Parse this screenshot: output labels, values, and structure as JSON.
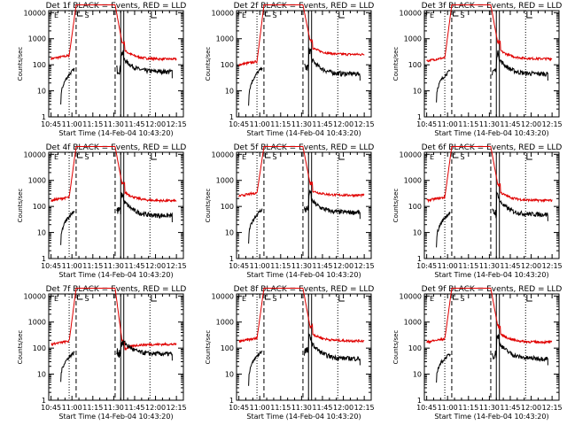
{
  "colors": {
    "events": "#000000",
    "lld": "#e00000",
    "background": "#ffffff"
  },
  "x_tick_labels": [
    "10:45",
    "11:00",
    "11:15",
    "11:30",
    "11:45",
    "12:00",
    "12:15"
  ],
  "y_tick_labels": [
    "1",
    "10",
    "100",
    "1000",
    "10000"
  ],
  "marker_labels": [
    "S",
    "E"
  ],
  "chart_data": [
    {
      "type": "line",
      "title": "Det 1f BLACK = Events, RED = LLD",
      "xlabel": "Start Time (14-Feb-04 10:43:20)",
      "ylabel": "Counts/sec",
      "yscale": "log",
      "ylim": [
        1,
        12000
      ],
      "xlim": [
        "10:43:20",
        "12:20:00"
      ],
      "lld_base": 170,
      "lld_after": 165,
      "events_pre": [
        3,
        70
      ],
      "events_post": 55,
      "post_spike": 700,
      "series": [
        {
          "name": "Events",
          "color": "#000000"
        },
        {
          "name": "LLD",
          "color": "#e00000"
        }
      ]
    },
    {
      "type": "line",
      "title": "Det 2f BLACK = Events, RED = LLD",
      "xlabel": "Start Time (14-Feb-04 10:43:20)",
      "ylabel": "Counts/sec",
      "yscale": "log",
      "ylim": [
        1,
        12000
      ],
      "xlim": [
        "10:43:20",
        "12:20:00"
      ],
      "lld_base": 100,
      "lld_after": 250,
      "events_pre": [
        3,
        80
      ],
      "events_post": 45,
      "post_spike": 900,
      "series": [
        {
          "name": "Events",
          "color": "#000000"
        },
        {
          "name": "LLD",
          "color": "#e00000"
        }
      ]
    },
    {
      "type": "line",
      "title": "Det 3f BLACK = Events, RED = LLD",
      "xlabel": "Start Time (14-Feb-04 10:43:20)",
      "ylabel": "Counts/sec",
      "yscale": "log",
      "ylim": [
        1,
        12000
      ],
      "xlim": [
        "10:43:20",
        "12:20:00"
      ],
      "lld_base": 140,
      "lld_after": 170,
      "events_pre": [
        4,
        60
      ],
      "events_post": 45,
      "post_spike": 700,
      "series": [
        {
          "name": "Events",
          "color": "#000000"
        },
        {
          "name": "LLD",
          "color": "#e00000"
        }
      ]
    },
    {
      "type": "line",
      "title": "Det 4f BLACK = Events, RED = LLD",
      "xlabel": "Start Time (14-Feb-04 10:43:20)",
      "ylabel": "Counts/sec",
      "yscale": "log",
      "ylim": [
        1,
        12000
      ],
      "xlim": [
        "10:43:20",
        "12:20:00"
      ],
      "lld_base": 170,
      "lld_after": 165,
      "events_pre": [
        3,
        70
      ],
      "events_post": 45,
      "post_spike": 700,
      "series": [
        {
          "name": "Events",
          "color": "#000000"
        },
        {
          "name": "LLD",
          "color": "#e00000"
        }
      ]
    },
    {
      "type": "line",
      "title": "Det 5f BLACK = Events, RED = LLD",
      "xlabel": "Start Time (14-Feb-04 10:43:20)",
      "ylabel": "Counts/sec",
      "yscale": "log",
      "ylim": [
        1,
        12000
      ],
      "xlim": [
        "10:43:20",
        "12:20:00"
      ],
      "lld_base": 250,
      "lld_after": 270,
      "events_pre": [
        4,
        80
      ],
      "events_post": 60,
      "post_spike": 800,
      "series": [
        {
          "name": "Events",
          "color": "#000000"
        },
        {
          "name": "LLD",
          "color": "#e00000"
        }
      ]
    },
    {
      "type": "line",
      "title": "Det 6f BLACK = Events, RED = LLD",
      "xlabel": "Start Time (14-Feb-04 10:43:20)",
      "ylabel": "Counts/sec",
      "yscale": "log",
      "ylim": [
        1,
        12000
      ],
      "xlim": [
        "10:43:20",
        "12:20:00"
      ],
      "lld_base": 170,
      "lld_after": 170,
      "events_pre": [
        3,
        60
      ],
      "events_post": 50,
      "post_spike": 700,
      "series": [
        {
          "name": "Events",
          "color": "#000000"
        },
        {
          "name": "LLD",
          "color": "#e00000"
        }
      ]
    },
    {
      "type": "line",
      "title": "Det 7f BLACK = Events, RED = LLD",
      "xlabel": "Start Time (14-Feb-04 10:43:20)",
      "ylabel": "Counts/sec",
      "yscale": "log",
      "ylim": [
        1,
        12000
      ],
      "xlim": [
        "10:43:20",
        "12:20:00"
      ],
      "lld_base": 140,
      "lld_after": 140,
      "events_pre": [
        5,
        70
      ],
      "events_post": 60,
      "post_spike": 180,
      "series": [
        {
          "name": "Events",
          "color": "#000000"
        },
        {
          "name": "LLD",
          "color": "#e00000"
        }
      ]
    },
    {
      "type": "line",
      "title": "Det 8f BLACK = Events, RED = LLD",
      "xlabel": "Start Time (14-Feb-04 10:43:20)",
      "ylabel": "Counts/sec",
      "yscale": "log",
      "ylim": [
        1,
        12000
      ],
      "xlim": [
        "10:43:20",
        "12:20:00"
      ],
      "lld_base": 180,
      "lld_after": 190,
      "events_pre": [
        4,
        80
      ],
      "events_post": 40,
      "post_spike": 700,
      "series": [
        {
          "name": "Events",
          "color": "#000000"
        },
        {
          "name": "LLD",
          "color": "#e00000"
        }
      ]
    },
    {
      "type": "line",
      "title": "Det 9f BLACK = Events, RED = LLD",
      "xlabel": "Start Time (14-Feb-04 10:43:20)",
      "ylabel": "Counts/sec",
      "yscale": "log",
      "ylim": [
        1,
        12000
      ],
      "xlim": [
        "10:43:20",
        "12:20:00"
      ],
      "lld_base": 170,
      "lld_after": 170,
      "events_pre": [
        5,
        60
      ],
      "events_post": 40,
      "post_spike": 700,
      "series": [
        {
          "name": "Events",
          "color": "#000000"
        },
        {
          "name": "LLD",
          "color": "#e00000"
        }
      ]
    }
  ]
}
